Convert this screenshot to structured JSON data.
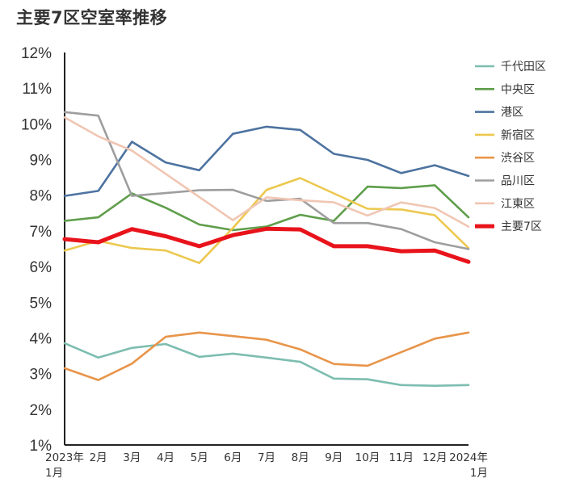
{
  "chart_data": {
    "type": "line",
    "title": "主要7区空室率推移",
    "xlabel": "",
    "ylabel": "",
    "ylim": [
      1,
      12
    ],
    "y_tick_values": [
      1,
      2,
      3,
      4,
      5,
      6,
      7,
      8,
      9,
      10,
      11,
      12
    ],
    "y_tick_labels": [
      "1%",
      "2%",
      "3%",
      "4%",
      "5%",
      "6%",
      "7%",
      "8%",
      "9%",
      "10%",
      "11%",
      "12%"
    ],
    "categories": [
      [
        "2023年",
        "1月"
      ],
      [
        "2月"
      ],
      [
        "3月"
      ],
      [
        "4月"
      ],
      [
        "5月"
      ],
      [
        "6月"
      ],
      [
        "7月"
      ],
      [
        "8月"
      ],
      [
        "9月"
      ],
      [
        "10月"
      ],
      [
        "11月"
      ],
      [
        "12月"
      ],
      [
        "2024年",
        "1月"
      ]
    ],
    "grid": false,
    "legend_position": "right",
    "series": [
      {
        "name": "千代田区",
        "color": "#7dbdb0",
        "emphasis": false,
        "values": [
          3.85,
          3.45,
          3.72,
          3.83,
          3.47,
          3.56,
          3.45,
          3.33,
          2.86,
          2.84,
          2.68,
          2.66,
          2.68
        ]
      },
      {
        "name": "中央区",
        "color": "#5f9e4b",
        "emphasis": false,
        "values": [
          7.28,
          7.38,
          8.05,
          7.65,
          7.18,
          7.02,
          7.12,
          7.45,
          7.28,
          8.24,
          8.2,
          8.28,
          7.38
        ]
      },
      {
        "name": "港区",
        "color": "#4d73a0",
        "emphasis": false,
        "values": [
          7.98,
          8.12,
          9.5,
          8.92,
          8.7,
          9.72,
          9.92,
          9.83,
          9.16,
          8.99,
          8.62,
          8.84,
          8.54
        ]
      },
      {
        "name": "新宿区",
        "color": "#ecc84f",
        "emphasis": false,
        "values": [
          6.45,
          6.72,
          6.52,
          6.45,
          6.1,
          7.08,
          8.15,
          8.48,
          8.05,
          7.62,
          7.6,
          7.44,
          6.52
        ]
      },
      {
        "name": "渋谷区",
        "color": "#e8954a",
        "emphasis": false,
        "values": [
          3.15,
          2.82,
          3.28,
          4.03,
          4.15,
          4.05,
          3.95,
          3.68,
          3.27,
          3.22,
          3.6,
          3.98,
          4.15
        ]
      },
      {
        "name": "品川区",
        "color": "#9e9e9e",
        "emphasis": false,
        "values": [
          10.33,
          10.23,
          7.98,
          8.06,
          8.14,
          8.15,
          7.84,
          7.9,
          7.22,
          7.22,
          7.05,
          6.68,
          6.49
        ]
      },
      {
        "name": "江東区",
        "color": "#f0c6b3",
        "emphasis": false,
        "values": [
          10.18,
          9.65,
          9.25,
          8.6,
          7.95,
          7.3,
          7.94,
          7.86,
          7.8,
          7.43,
          7.8,
          7.64,
          7.12
        ]
      },
      {
        "name": "主要7区",
        "color": "#e8131b",
        "emphasis": true,
        "values": [
          6.77,
          6.68,
          7.05,
          6.85,
          6.57,
          6.88,
          7.06,
          7.04,
          6.57,
          6.57,
          6.43,
          6.45,
          6.13
        ]
      }
    ]
  }
}
